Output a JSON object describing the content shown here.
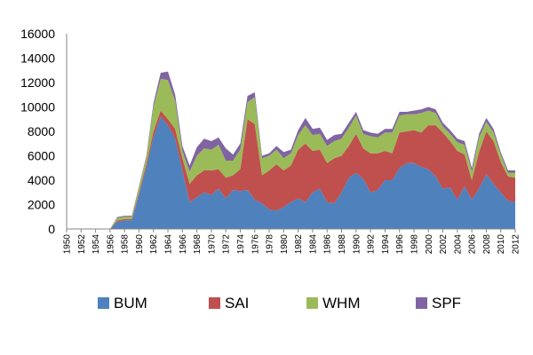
{
  "chart_data": {
    "type": "area",
    "stacked": true,
    "title": "",
    "xlabel": "",
    "ylabel": "",
    "ylim": [
      0,
      16000
    ],
    "xlim": [
      1950,
      2012
    ],
    "y_ticks": [
      "0",
      "2000",
      "4000",
      "6000",
      "8000",
      "10000",
      "12000",
      "14000",
      "16000"
    ],
    "x_ticks": [
      "1950",
      "1952",
      "1954",
      "1956",
      "1958",
      "1960",
      "1962",
      "1964",
      "1966",
      "1968",
      "1970",
      "1972",
      "1974",
      "1976",
      "1978",
      "1980",
      "1982",
      "1984",
      "1986",
      "1988",
      "1990",
      "1992",
      "1994",
      "1996",
      "1998",
      "2000",
      "2002",
      "2004",
      "2006",
      "2008",
      "2010",
      "2012"
    ],
    "grid": false,
    "legend_position": "bottom",
    "x": [
      1950,
      1951,
      1952,
      1953,
      1954,
      1955,
      1956,
      1957,
      1958,
      1959,
      1960,
      1961,
      1962,
      1963,
      1964,
      1965,
      1966,
      1967,
      1968,
      1969,
      1970,
      1971,
      1972,
      1973,
      1974,
      1975,
      1976,
      1977,
      1978,
      1979,
      1980,
      1981,
      1982,
      1983,
      1984,
      1985,
      1986,
      1987,
      1988,
      1989,
      1990,
      1991,
      1992,
      1993,
      1994,
      1995,
      1996,
      1997,
      1998,
      1999,
      2000,
      2001,
      2002,
      2003,
      2004,
      2005,
      2006,
      2007,
      2008,
      2009,
      2010,
      2011,
      2012
    ],
    "series": [
      {
        "name": "BUM",
        "color": "#4F81BD",
        "values": [
          0,
          0,
          0,
          0,
          0,
          0,
          0,
          600,
          700,
          700,
          2800,
          5000,
          7500,
          9200,
          8500,
          7400,
          4800,
          2200,
          2600,
          3000,
          2800,
          3300,
          2500,
          3200,
          3100,
          3200,
          2400,
          2100,
          1600,
          1500,
          1800,
          2200,
          2500,
          2200,
          3000,
          3300,
          2200,
          2100,
          3000,
          4200,
          4600,
          4100,
          3000,
          3200,
          4000,
          4000,
          5000,
          5400,
          5400,
          5100,
          4900,
          4300,
          3300,
          3400,
          2400,
          3500,
          2400,
          3300,
          4500,
          3700,
          3000,
          2300,
          2200
        ]
      },
      {
        "name": "SAI",
        "color": "#C0504D",
        "values": [
          0,
          0,
          0,
          0,
          0,
          0,
          0,
          100,
          100,
          100,
          200,
          300,
          500,
          500,
          500,
          800,
          1000,
          1500,
          1800,
          1800,
          2000,
          1600,
          1700,
          1200,
          1800,
          5800,
          6200,
          2300,
          3200,
          3800,
          3000,
          3000,
          4000,
          4800,
          3400,
          3200,
          3200,
          3700,
          3000,
          2600,
          3200,
          2500,
          3200,
          3000,
          2400,
          2200,
          2900,
          2600,
          2700,
          2800,
          3600,
          4200,
          4600,
          3800,
          4000,
          2600,
          1600,
          3000,
          3500,
          3500,
          2500,
          2000,
          2000
        ]
      },
      {
        "name": "WHM",
        "color": "#9BBB59",
        "values": [
          0,
          0,
          0,
          0,
          0,
          0,
          0,
          200,
          200,
          200,
          400,
          500,
          2000,
          2600,
          3200,
          2300,
          600,
          1000,
          1600,
          1800,
          1700,
          2000,
          1400,
          1200,
          1600,
          1400,
          2200,
          1400,
          1200,
          1200,
          1000,
          1000,
          1200,
          1500,
          1300,
          1300,
          1400,
          1400,
          1400,
          1500,
          1500,
          1200,
          1400,
          1300,
          1500,
          1700,
          1400,
          1400,
          1300,
          1600,
          1200,
          1000,
          500,
          600,
          700,
          800,
          700,
          1200,
          800,
          700,
          600,
          300,
          400
        ]
      },
      {
        "name": "SPF",
        "color": "#8064A2",
        "values": [
          0,
          0,
          0,
          0,
          0,
          0,
          0,
          80,
          80,
          80,
          100,
          150,
          300,
          500,
          700,
          500,
          400,
          500,
          700,
          800,
          700,
          600,
          1000,
          500,
          500,
          500,
          400,
          200,
          200,
          300,
          500,
          300,
          400,
          600,
          500,
          500,
          500,
          500,
          400,
          400,
          300,
          300,
          300,
          300,
          300,
          300,
          300,
          200,
          300,
          300,
          300,
          300,
          300,
          300,
          300,
          300,
          300,
          300,
          300,
          300,
          200,
          200,
          200
        ]
      }
    ]
  }
}
